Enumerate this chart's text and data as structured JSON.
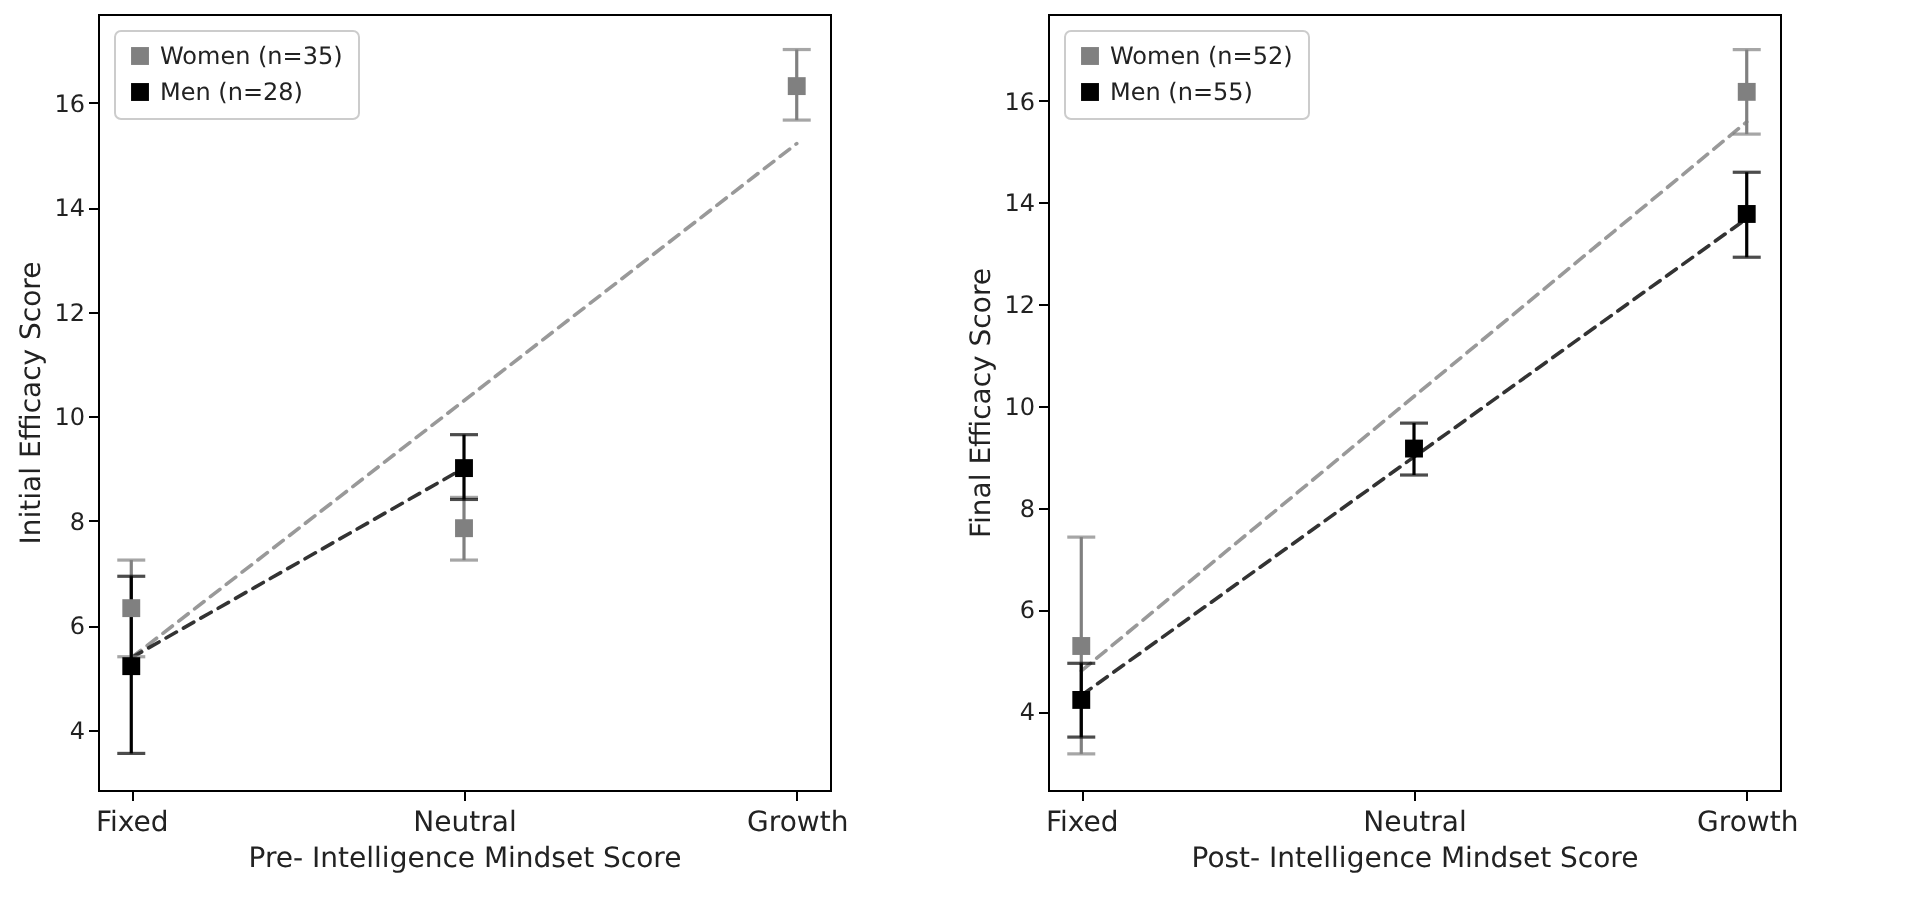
{
  "chart_data": [
    {
      "type": "scatter",
      "categories": [
        "Fixed",
        "Neutral",
        "Growth"
      ],
      "xlabel": "Pre- Intelligence Mindset Score",
      "ylabel": "Initial Efficacy Score",
      "ylim": [
        2.85,
        17.7
      ],
      "yticks": [
        4,
        6,
        8,
        10,
        12,
        14,
        16
      ],
      "grid": false,
      "legend": "top left",
      "marker": "square",
      "series": [
        {
          "type": "line",
          "color": "#999999",
          "line_style": "dashed",
          "marker": "none",
          "x": [
            "Fixed",
            "Growth"
          ],
          "values": [
            5.38,
            15.22
          ]
        },
        {
          "type": "line",
          "color": "#333333",
          "line_style": "dashed",
          "marker": "none",
          "x": [
            "Fixed",
            "Neutral"
          ],
          "values": [
            5.38,
            9.01
          ]
        },
        {
          "name": "Women (n=35)",
          "color": "#808080",
          "values": [
            6.33,
            7.86,
            16.32
          ],
          "errors": [
            [
              5.4,
              7.25
            ],
            [
              7.25,
              8.45
            ],
            [
              15.67,
              17.02
            ]
          ]
        },
        {
          "name": "Men (n=28)",
          "color": "#000000",
          "values": [
            5.22,
            9.01,
            null
          ],
          "errors": [
            [
              3.55,
              6.94
            ],
            [
              8.41,
              9.65
            ],
            null
          ]
        }
      ]
    },
    {
      "type": "scatter",
      "categories": [
        "Fixed",
        "Neutral",
        "Growth"
      ],
      "xlabel": "Post- Intelligence Mindset Score",
      "ylabel": "Final Efficacy Score",
      "ylim": [
        2.45,
        17.7
      ],
      "yticks": [
        4,
        6,
        8,
        10,
        12,
        14,
        16
      ],
      "grid": false,
      "legend": "top left",
      "marker": "square",
      "series": [
        {
          "type": "line",
          "color": "#999999",
          "line_style": "dashed",
          "marker": "none",
          "x": [
            "Fixed",
            "Growth"
          ],
          "values": [
            4.79,
            15.58
          ]
        },
        {
          "type": "line",
          "color": "#333333",
          "line_style": "dashed",
          "marker": "none",
          "x": [
            "Fixed",
            "Growth"
          ],
          "values": [
            4.31,
            13.68
          ]
        },
        {
          "name": "Women (n=52)",
          "color": "#808080",
          "values": [
            5.28,
            null,
            16.17
          ],
          "errors": [
            [
              3.16,
              7.42
            ],
            null,
            [
              15.34,
              17.0
            ]
          ]
        },
        {
          "name": "Men (n=55)",
          "color": "#000000",
          "values": [
            4.22,
            9.16,
            13.77
          ],
          "errors": [
            [
              3.49,
              4.94
            ],
            [
              8.64,
              9.66
            ],
            [
              12.92,
              14.59
            ]
          ]
        }
      ]
    }
  ]
}
